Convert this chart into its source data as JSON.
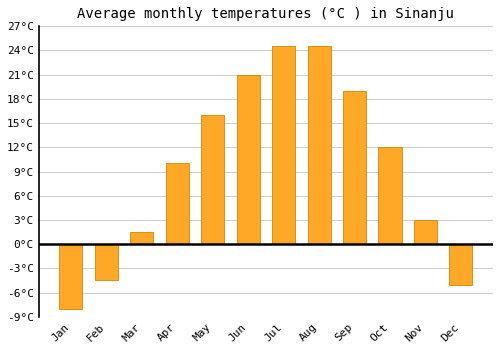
{
  "title": "Average monthly temperatures (°C ) in Sinanju",
  "months": [
    "Jan",
    "Feb",
    "Mar",
    "Apr",
    "May",
    "Jun",
    "Jul",
    "Aug",
    "Sep",
    "Oct",
    "Nov",
    "Dec"
  ],
  "values": [
    -8.0,
    -4.5,
    1.5,
    10.0,
    16.0,
    21.0,
    24.5,
    24.5,
    19.0,
    12.0,
    3.0,
    -5.0
  ],
  "bar_color": "#FFA726",
  "bar_edge_color": "#CC8800",
  "bar_width": 0.65,
  "ylim": [
    -9,
    27
  ],
  "yticks": [
    -9,
    -6,
    -3,
    0,
    3,
    6,
    9,
    12,
    15,
    18,
    21,
    24,
    27
  ],
  "ytick_labels": [
    "-9°C",
    "-6°C",
    "-3°C",
    "0°C",
    "3°C",
    "6°C",
    "9°C",
    "12°C",
    "15°C",
    "18°C",
    "21°C",
    "24°C",
    "27°C"
  ],
  "background_color": "#ffffff",
  "grid_color": "#cccccc",
  "title_fontsize": 10,
  "tick_fontsize": 8,
  "font_family": "monospace"
}
